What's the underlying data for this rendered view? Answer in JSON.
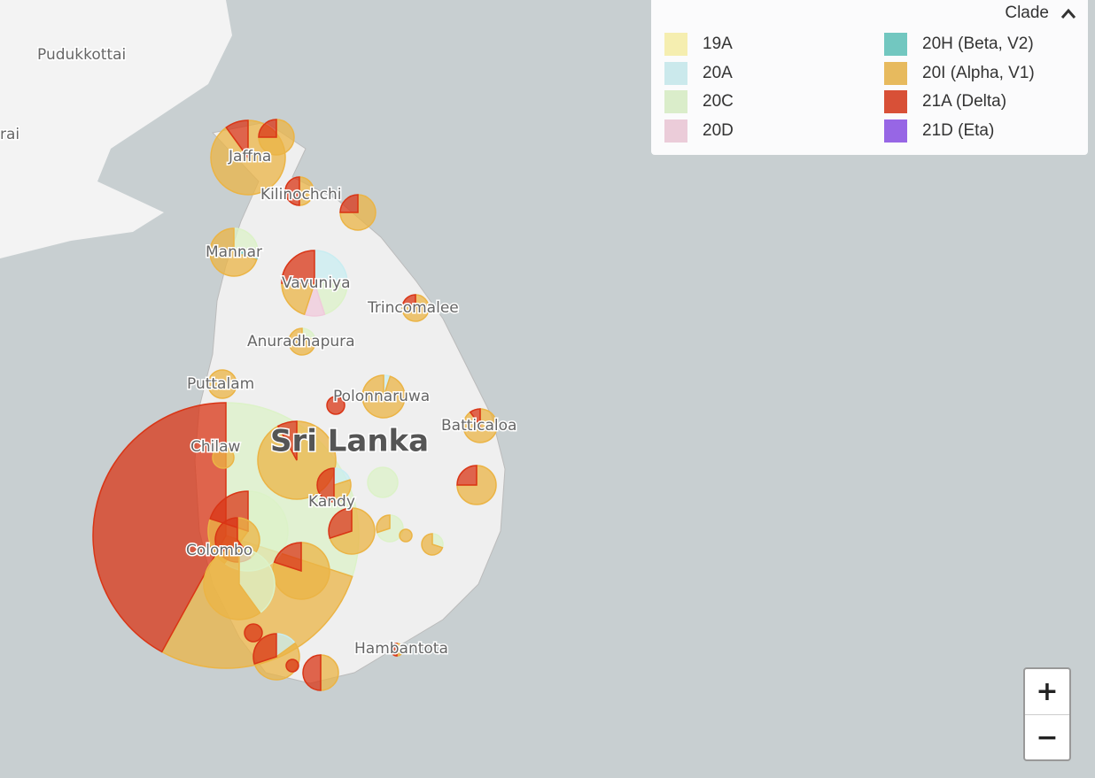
{
  "legend": {
    "title": "Clade",
    "items": [
      {
        "name": "19A",
        "color": "#fcf3a8"
      },
      {
        "name": "20A",
        "color": "#c9edf1"
      },
      {
        "name": "20C",
        "color": "#dcf2c8"
      },
      {
        "name": "20D",
        "color": "#f0cadb"
      },
      {
        "name": "20H (Beta, V2)",
        "color": "#5ec4bc"
      },
      {
        "name": "20I (Alpha, V1)",
        "color": "#ebb445"
      },
      {
        "name": "21A (Delta)",
        "color": "#d93516"
      },
      {
        "name": "21D (Eta)",
        "color": "#8a4fe8"
      }
    ]
  },
  "places": [
    "Pudukkottai",
    "rai",
    "Jaffna",
    "Kilinochchi",
    "Mannar",
    "Vavuniya",
    "Trincomalee",
    "Anuradhapura",
    "Puttalam",
    "Polonnaruwa",
    "Batticaloa",
    "Sri Lanka",
    "Chilaw",
    "Kandy",
    "Colombo",
    "Hambantota"
  ],
  "zoom": {
    "in": "+",
    "out": "−"
  }
}
